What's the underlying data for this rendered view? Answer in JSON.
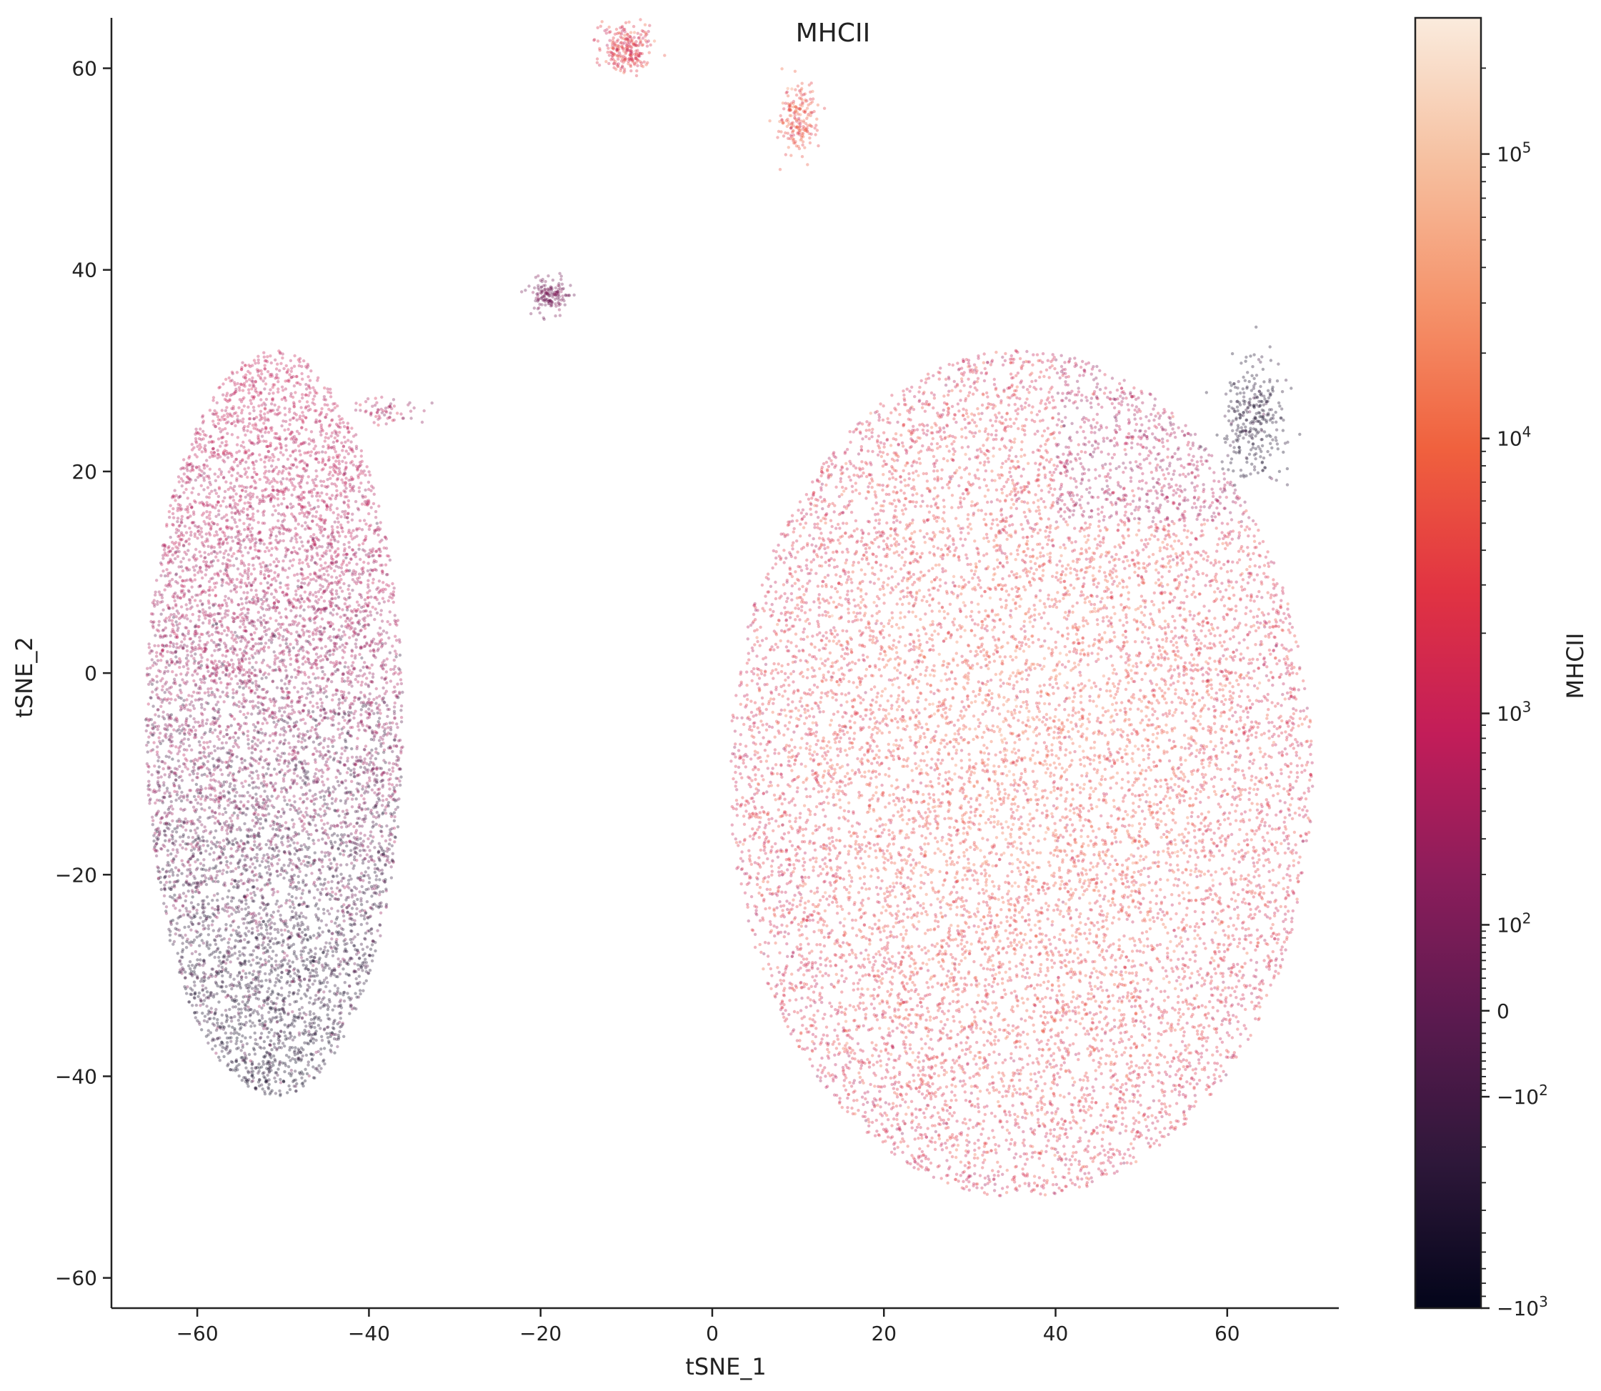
{
  "chart_data": {
    "type": "scatter",
    "title": "MHCII",
    "xlabel": "tSNE_1",
    "ylabel": "tSNE_2",
    "xlim": [
      -70,
      73
    ],
    "ylim": [
      -63,
      65
    ],
    "x_ticks": [
      -60,
      -40,
      -20,
      0,
      20,
      40,
      60
    ],
    "y_ticks": [
      -60,
      -40,
      -20,
      0,
      20,
      40,
      60
    ],
    "x_tick_labels": [
      "−60",
      "−40",
      "−20",
      "0",
      "20",
      "40",
      "60"
    ],
    "y_tick_labels": [
      "−60",
      "−40",
      "−20",
      "0",
      "20",
      "40",
      "60"
    ],
    "colorbar": {
      "label": "MHCII",
      "scale": "symlog",
      "colormap": "rocket",
      "range": [
        -1000,
        300000
      ],
      "ticks": [
        {
          "value": 100000,
          "base": "10",
          "exp": "5",
          "sign": ""
        },
        {
          "value": 10000,
          "base": "10",
          "exp": "4",
          "sign": ""
        },
        {
          "value": 1000,
          "base": "10",
          "exp": "3",
          "sign": ""
        },
        {
          "value": 100,
          "base": "10",
          "exp": "2",
          "sign": ""
        },
        {
          "value": 0,
          "base": "0",
          "exp": "",
          "sign": ""
        },
        {
          "value": -100,
          "base": "10",
          "exp": "2",
          "sign": "−"
        },
        {
          "value": -1000,
          "base": "10",
          "exp": "3",
          "sign": "−"
        }
      ],
      "colors": [
        "#03051a",
        "#2d1739",
        "#5a1a4f",
        "#8b1d5b",
        "#c21d59",
        "#e13342",
        "#f0613e",
        "#f5936b",
        "#f6c0a0",
        "#faebdd"
      ]
    },
    "clusters": [
      {
        "center": [
          -51,
          -5
        ],
        "spread": [
          15,
          37
        ],
        "level_top": 900,
        "level_bottom": -500,
        "points": 8000
      },
      {
        "center": [
          36,
          -10
        ],
        "spread": [
          34,
          42
        ],
        "level_center": 6000,
        "level_edge": 1500,
        "points": 12000
      },
      {
        "center": [
          -10,
          62
        ],
        "spread": [
          2.5,
          2
        ],
        "level": 2500,
        "points": 250
      },
      {
        "center": [
          10,
          55
        ],
        "spread": [
          1.8,
          3
        ],
        "level": 6000,
        "points": 200
      },
      {
        "center": [
          -19,
          37.5
        ],
        "spread": [
          2,
          1.5
        ],
        "level": 50,
        "points": 150
      },
      {
        "center": [
          -38,
          26
        ],
        "spread": [
          3,
          1
        ],
        "level": 400,
        "points": 60
      },
      {
        "center": [
          63,
          25
        ],
        "spread": [
          3,
          5
        ],
        "level": -400,
        "points": 300
      }
    ]
  }
}
